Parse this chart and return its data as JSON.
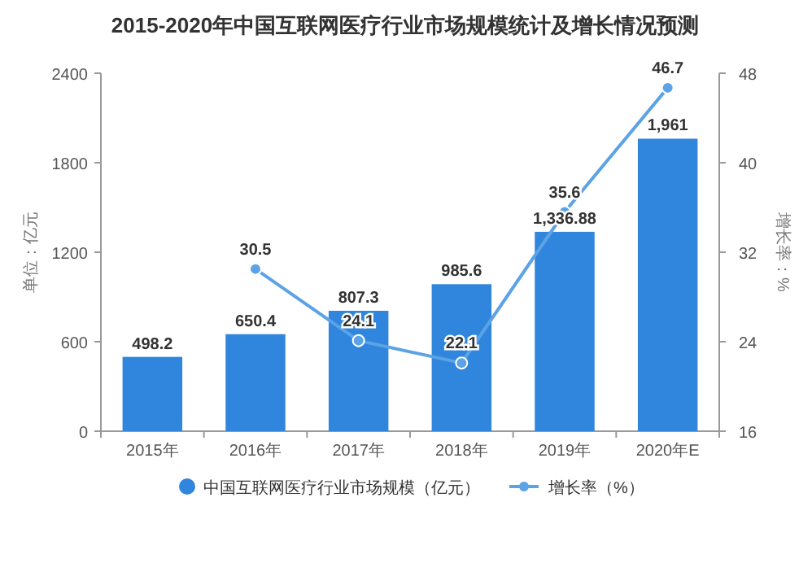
{
  "chart_data": {
    "type": "bar",
    "title": "2015-2020年中国互联网医疗行业市场规模统计及增长情况预测",
    "categories": [
      "2015年",
      "2016年",
      "2017年",
      "2018年",
      "2019年",
      "2020年E"
    ],
    "ylabel": "单位：亿元",
    "y2label": "增长率：%",
    "ylim": [
      0,
      2400
    ],
    "yticks": [
      0,
      600,
      1200,
      1800,
      2400
    ],
    "y2lim": [
      16,
      48
    ],
    "y2ticks": [
      16,
      24,
      32,
      40,
      48
    ],
    "legend": "bottom",
    "series": [
      {
        "name": "中国互联网医疗行业市场规模（亿元）",
        "color": "#2f86dc",
        "values": [
          498.2,
          650.4,
          807.3,
          985.6,
          1336.88,
          1961
        ],
        "value_labels": [
          "498.2",
          "650.4",
          "807.3",
          "985.6",
          "1,336.88",
          "1,961"
        ]
      },
      {
        "type": "line",
        "axis": "y2",
        "marker": "circle",
        "name": "增长率（%）",
        "color": "#5ba3e6",
        "values": [
          null,
          30.5,
          24.1,
          22.1,
          35.6,
          46.7
        ],
        "value_labels": [
          null,
          "30.5",
          "24.1",
          "22.1",
          "35.6",
          "46.7"
        ]
      }
    ]
  }
}
